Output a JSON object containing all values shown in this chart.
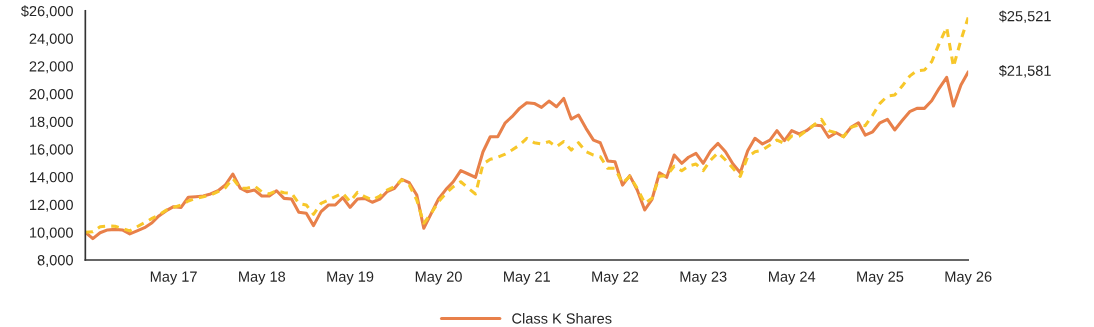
{
  "chart_data": {
    "type": "line",
    "x": [
      "2016-05",
      "2016-06",
      "2016-07",
      "2016-08",
      "2016-09",
      "2016-10",
      "2016-11",
      "2016-12",
      "2017-01",
      "2017-02",
      "2017-03",
      "2017-04",
      "2017-05",
      "2017-06",
      "2017-07",
      "2017-08",
      "2017-09",
      "2017-10",
      "2017-11",
      "2017-12",
      "2018-01",
      "2018-02",
      "2018-03",
      "2018-04",
      "2018-05",
      "2018-06",
      "2018-07",
      "2018-08",
      "2018-09",
      "2018-10",
      "2018-11",
      "2018-12",
      "2019-01",
      "2019-02",
      "2019-03",
      "2019-04",
      "2019-05",
      "2019-06",
      "2019-07",
      "2019-08",
      "2019-09",
      "2019-10",
      "2019-11",
      "2019-12",
      "2020-01",
      "2020-02",
      "2020-03",
      "2020-04",
      "2020-05",
      "2020-06",
      "2020-07",
      "2020-08",
      "2020-09",
      "2020-10",
      "2020-11",
      "2020-12",
      "2021-01",
      "2021-02",
      "2021-03",
      "2021-04",
      "2021-05",
      "2021-06",
      "2021-07",
      "2021-08",
      "2021-09",
      "2021-10",
      "2021-11",
      "2021-12",
      "2022-01",
      "2022-02",
      "2022-03",
      "2022-04",
      "2022-05",
      "2022-06",
      "2022-07",
      "2022-08",
      "2022-09",
      "2022-10",
      "2022-11",
      "2022-12",
      "2023-01",
      "2023-02",
      "2023-03",
      "2023-04",
      "2023-05",
      "2023-06",
      "2023-07",
      "2023-08",
      "2023-09",
      "2023-10",
      "2023-11",
      "2023-12",
      "2024-01",
      "2024-02",
      "2024-03",
      "2024-04",
      "2024-05",
      "2024-06",
      "2024-07",
      "2024-08",
      "2024-09",
      "2024-10",
      "2024-11",
      "2024-12",
      "2025-01",
      "2025-02",
      "2025-03",
      "2025-04",
      "2025-05",
      "2025-06",
      "2025-07",
      "2025-08",
      "2025-09",
      "2025-10",
      "2025-11",
      "2025-12",
      "2026-01",
      "2026-02",
      "2026-03",
      "2026-04",
      "2026-05"
    ],
    "series": [
      {
        "name": "Class K Shares",
        "color": "#e8804a",
        "line_style": "solid",
        "values": [
          10000,
          9540,
          9970,
          10170,
          10210,
          10170,
          9880,
          10100,
          10330,
          10690,
          11180,
          11560,
          11850,
          11800,
          12530,
          12570,
          12620,
          12770,
          13000,
          13410,
          14210,
          13180,
          12930,
          13050,
          12620,
          12620,
          13000,
          12450,
          12400,
          11440,
          11380,
          10480,
          11490,
          11970,
          11970,
          12500,
          11800,
          12400,
          12450,
          12170,
          12400,
          12930,
          13180,
          13820,
          13580,
          12690,
          10290,
          11370,
          12400,
          13100,
          13650,
          14450,
          14210,
          13970,
          15820,
          16900,
          16900,
          17910,
          18350,
          18950,
          19360,
          19310,
          19020,
          19480,
          19070,
          19670,
          18180,
          18470,
          17510,
          16660,
          16470,
          15150,
          15100,
          13410,
          14090,
          13050,
          11610,
          12380,
          14300,
          13970,
          15580,
          14980,
          15420,
          15700,
          14980,
          15890,
          16420,
          15820,
          14930,
          14300,
          15890,
          16790,
          16380,
          16660,
          17340,
          16620,
          17340,
          17100,
          17340,
          17750,
          17700,
          16860,
          17190,
          16900,
          17580,
          17910,
          17020,
          17260,
          17910,
          18160,
          17390,
          18070,
          18710,
          18950,
          18950,
          19500,
          20400,
          21190,
          19120,
          20640,
          21581
        ]
      },
      {
        "color": "#f7c72a",
        "line_style": "dashed",
        "values": [
          10000,
          10040,
          10400,
          10450,
          10440,
          10270,
          10100,
          10400,
          10690,
          11000,
          11250,
          11600,
          11800,
          11970,
          12260,
          12450,
          12570,
          12690,
          12930,
          13220,
          13890,
          13180,
          13180,
          13340,
          12930,
          12770,
          13000,
          12860,
          12820,
          12090,
          11970,
          11300,
          12090,
          12330,
          12570,
          12820,
          12210,
          12890,
          12570,
          12330,
          12620,
          13050,
          13290,
          13790,
          13410,
          12330,
          10650,
          11370,
          12210,
          12820,
          13290,
          13650,
          13180,
          12770,
          14930,
          15270,
          15420,
          15650,
          15940,
          16300,
          16790,
          16470,
          16380,
          16550,
          16180,
          16550,
          15940,
          16470,
          15820,
          15580,
          15460,
          14620,
          14620,
          13540,
          14040,
          13180,
          12090,
          12450,
          14040,
          14100,
          14790,
          14450,
          14790,
          14930,
          14450,
          15220,
          15750,
          15220,
          14620,
          14040,
          15460,
          15820,
          15940,
          16300,
          16660,
          16420,
          16960,
          16960,
          17340,
          17750,
          18160,
          17340,
          17190,
          16900,
          17580,
          17750,
          17700,
          18470,
          19310,
          19840,
          19910,
          20560,
          21280,
          21670,
          21720,
          22320,
          23640,
          24800,
          21960,
          23880,
          25521
        ]
      }
    ],
    "xlim": [
      "2016-05",
      "2026-05"
    ],
    "xticks": [
      {
        "value": "2017-05",
        "label": "May 17"
      },
      {
        "value": "2018-05",
        "label": "May 18"
      },
      {
        "value": "2019-05",
        "label": "May 19"
      },
      {
        "value": "2020-05",
        "label": "May 20"
      },
      {
        "value": "2021-05",
        "label": "May 21"
      },
      {
        "value": "2022-05",
        "label": "May 22"
      },
      {
        "value": "2023-05",
        "label": "May 23"
      },
      {
        "value": "2024-05",
        "label": "May 24"
      },
      {
        "value": "2025-05",
        "label": "May 25"
      },
      {
        "value": "2026-05",
        "label": "May 26"
      }
    ],
    "ylim": [
      8000,
      26000
    ],
    "yticks": [
      {
        "value": 8000,
        "label": "8,000"
      },
      {
        "value": 10000,
        "label": "10,000"
      },
      {
        "value": 12000,
        "label": "12,000"
      },
      {
        "value": 14000,
        "label": "14,000"
      },
      {
        "value": 16000,
        "label": "16,000"
      },
      {
        "value": 18000,
        "label": "18,000"
      },
      {
        "value": 20000,
        "label": "20,000"
      },
      {
        "value": 22000,
        "label": "22,000"
      },
      {
        "value": 24000,
        "label": "24,000"
      },
      {
        "value": 26000,
        "label": "$26,000"
      }
    ],
    "annotations": [
      {
        "text": "$25,521",
        "x": "2026-05",
        "y": 25521
      },
      {
        "text": "$21,581",
        "x": "2026-05",
        "y": 21581
      }
    ],
    "grid": false,
    "legend": "bottom",
    "marker": "none"
  }
}
